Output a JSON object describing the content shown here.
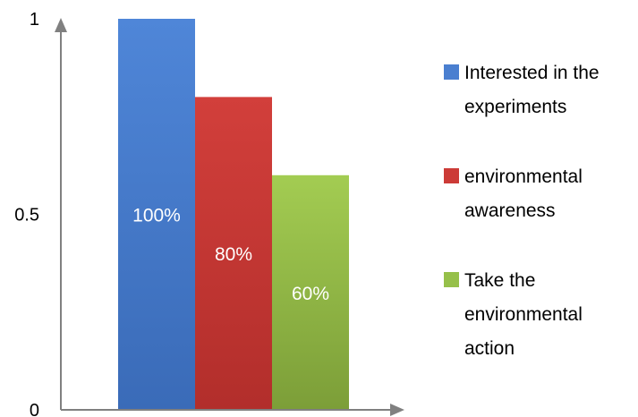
{
  "chart_data": {
    "type": "bar",
    "categories": [
      "Interested in the experiments",
      "environmental awareness",
      "Take the environmental action"
    ],
    "values": [
      1.0,
      0.8,
      0.6
    ],
    "data_labels": [
      "100%",
      "80%",
      "60%"
    ],
    "colors": [
      "#4a7fd0",
      "#cc3b37",
      "#96c04a"
    ],
    "ylim": [
      0,
      1
    ],
    "yticks": [
      {
        "value": 0,
        "label": "0"
      },
      {
        "value": 0.5,
        "label": "0.5"
      },
      {
        "value": 1,
        "label": "1"
      }
    ],
    "grid": false,
    "legend": {
      "placement": "right",
      "entries": [
        {
          "lines": [
            "Interested in the",
            "experiments"
          ],
          "color": "#4a7fd0"
        },
        {
          "lines": [
            "environmental",
            "awareness"
          ],
          "color": "#cc3b37"
        },
        {
          "lines": [
            "Take the",
            "environmental",
            "action"
          ],
          "color": "#96c04a"
        }
      ]
    }
  }
}
